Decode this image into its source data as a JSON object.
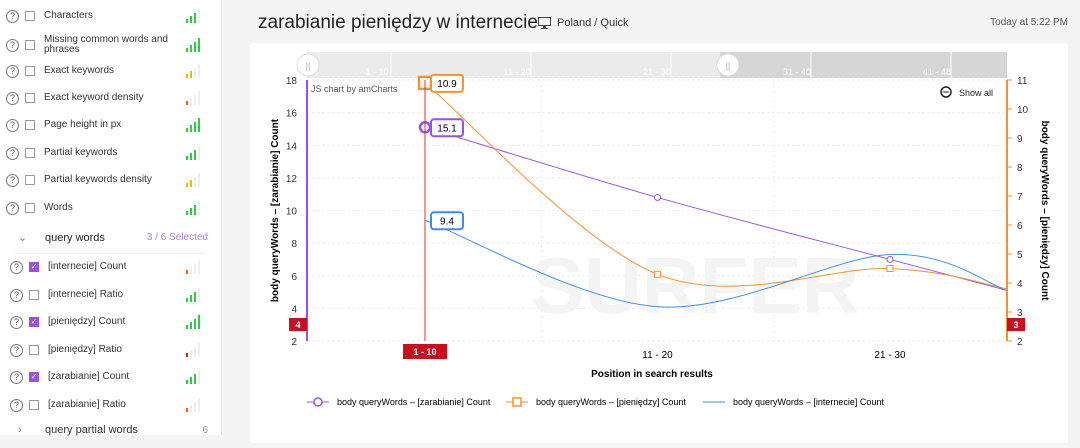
{
  "header": {
    "title": "zarabianie pieniędzy w internecie",
    "location": "Poland / Quick",
    "time": "Today at 5:22 PM"
  },
  "sidebar": {
    "items": [
      {
        "label": "Characters",
        "checked": false,
        "signal": 3,
        "color": "#2ecc40"
      },
      {
        "label": "Missing common words and phrases",
        "checked": false,
        "signal": 4,
        "color": "#2ecc40"
      },
      {
        "label": "Exact keywords",
        "checked": false,
        "signal": 2,
        "color": "#f5b800"
      },
      {
        "label": "Exact keyword density",
        "checked": false,
        "signal": 1,
        "color": "#ff5a1f"
      },
      {
        "label": "Page height in px",
        "checked": false,
        "signal": 4,
        "color": "#2ecc40"
      },
      {
        "label": "Partial keywords",
        "checked": false,
        "signal": 3,
        "color": "#2ecc40"
      },
      {
        "label": "Partial keywords density",
        "checked": false,
        "signal": 2,
        "color": "#f5b800"
      },
      {
        "label": "Words",
        "checked": false,
        "signal": 3,
        "color": "#2ecc40"
      }
    ],
    "section": {
      "label": "query words",
      "count": "3 / 6 Selected"
    },
    "sub_items": [
      {
        "label": "[internecie] Count",
        "checked": true,
        "signal": 1,
        "color": "#ff5a1f"
      },
      {
        "label": "[internecie] Ratio",
        "checked": false,
        "signal": 3,
        "color": "#2ecc40"
      },
      {
        "label": "[pieniędzy] Count",
        "checked": true,
        "signal": 4,
        "color": "#2ecc40"
      },
      {
        "label": "[pieniędzy] Ratio",
        "checked": false,
        "signal": 1,
        "color": "#e02020"
      },
      {
        "label": "[zarabianie] Count",
        "checked": true,
        "signal": 3,
        "color": "#2ecc40"
      },
      {
        "label": "[zarabianie] Ratio",
        "checked": false,
        "signal": 1,
        "color": "#ff5a1f"
      }
    ],
    "section2": {
      "label": "query partial words",
      "count": "6"
    }
  },
  "chart_data": {
    "type": "line",
    "categories": [
      "1 - 10",
      "11 - 20",
      "21 - 30",
      "31 - 40"
    ],
    "scrollbar_labels": [
      "1 - 10",
      "11 - 20",
      "21 - 30",
      "31 - 40",
      "41 - 48"
    ],
    "xlabel": "Position in search results",
    "ylabel_left": "body queryWords – [zarabianie] Count",
    "ylabel_right": "body queryWords – [pieniędzy] Count",
    "ylim_left": [
      2,
      18
    ],
    "yticks_left": [
      2,
      4,
      6,
      8,
      10,
      12,
      14,
      16,
      18
    ],
    "ylim_right": [
      2,
      11
    ],
    "yticks_right": [
      2,
      3,
      4,
      5,
      6,
      7,
      8,
      9,
      10,
      11
    ],
    "credit": "JS chart by amCharts",
    "show_all": "Show all",
    "cursor": {
      "category": "1 - 10",
      "left_value": "4",
      "right_value": "3"
    },
    "series": [
      {
        "name": "body queryWords – [zarabianie] Count",
        "axis": "left",
        "color": "#9b51e0",
        "marker": "circle",
        "values": [
          15.1,
          10.8,
          7.0,
          5.1
        ],
        "label": "15.1"
      },
      {
        "name": "body queryWords – [pieniędzy] Count",
        "axis": "right",
        "color": "#f7922f",
        "marker": "square",
        "values": [
          10.9,
          4.3,
          4.5,
          3.8
        ],
        "label": "10.9"
      },
      {
        "name": "body queryWords – [internecie] Count",
        "axis": "left",
        "color": "#3b8fe8",
        "marker": "none",
        "values": [
          9.4,
          4.1,
          7.3,
          5.1
        ],
        "label": "9.4"
      }
    ]
  }
}
